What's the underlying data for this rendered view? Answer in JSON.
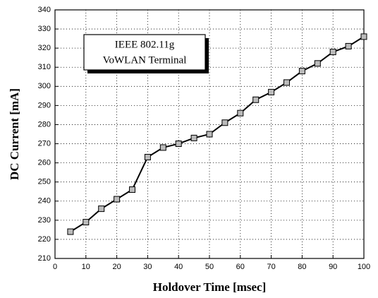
{
  "chart_data": {
    "type": "line",
    "x": [
      5,
      10,
      15,
      20,
      25,
      30,
      35,
      40,
      45,
      50,
      55,
      60,
      65,
      70,
      75,
      80,
      85,
      90,
      95,
      100
    ],
    "values": [
      224,
      229,
      236,
      241,
      246,
      263,
      268,
      270,
      273,
      275,
      281,
      286,
      293,
      297,
      302,
      308,
      312,
      318,
      321,
      326
    ],
    "color": "#000000",
    "xlabel": "Holdover Time [msec]",
    "ylabel": "DC Current [mA]",
    "annotation": [
      "IEEE 802.11g",
      "VoWLAN Terminal"
    ],
    "xlim": [
      0,
      100
    ],
    "xticks": [
      0,
      10,
      20,
      30,
      40,
      50,
      60,
      70,
      80,
      90,
      100
    ],
    "ylim": [
      210,
      340
    ],
    "yticks": [
      210,
      220,
      230,
      240,
      250,
      260,
      270,
      280,
      290,
      300,
      310,
      320,
      330,
      340
    ],
    "grid": true
  }
}
